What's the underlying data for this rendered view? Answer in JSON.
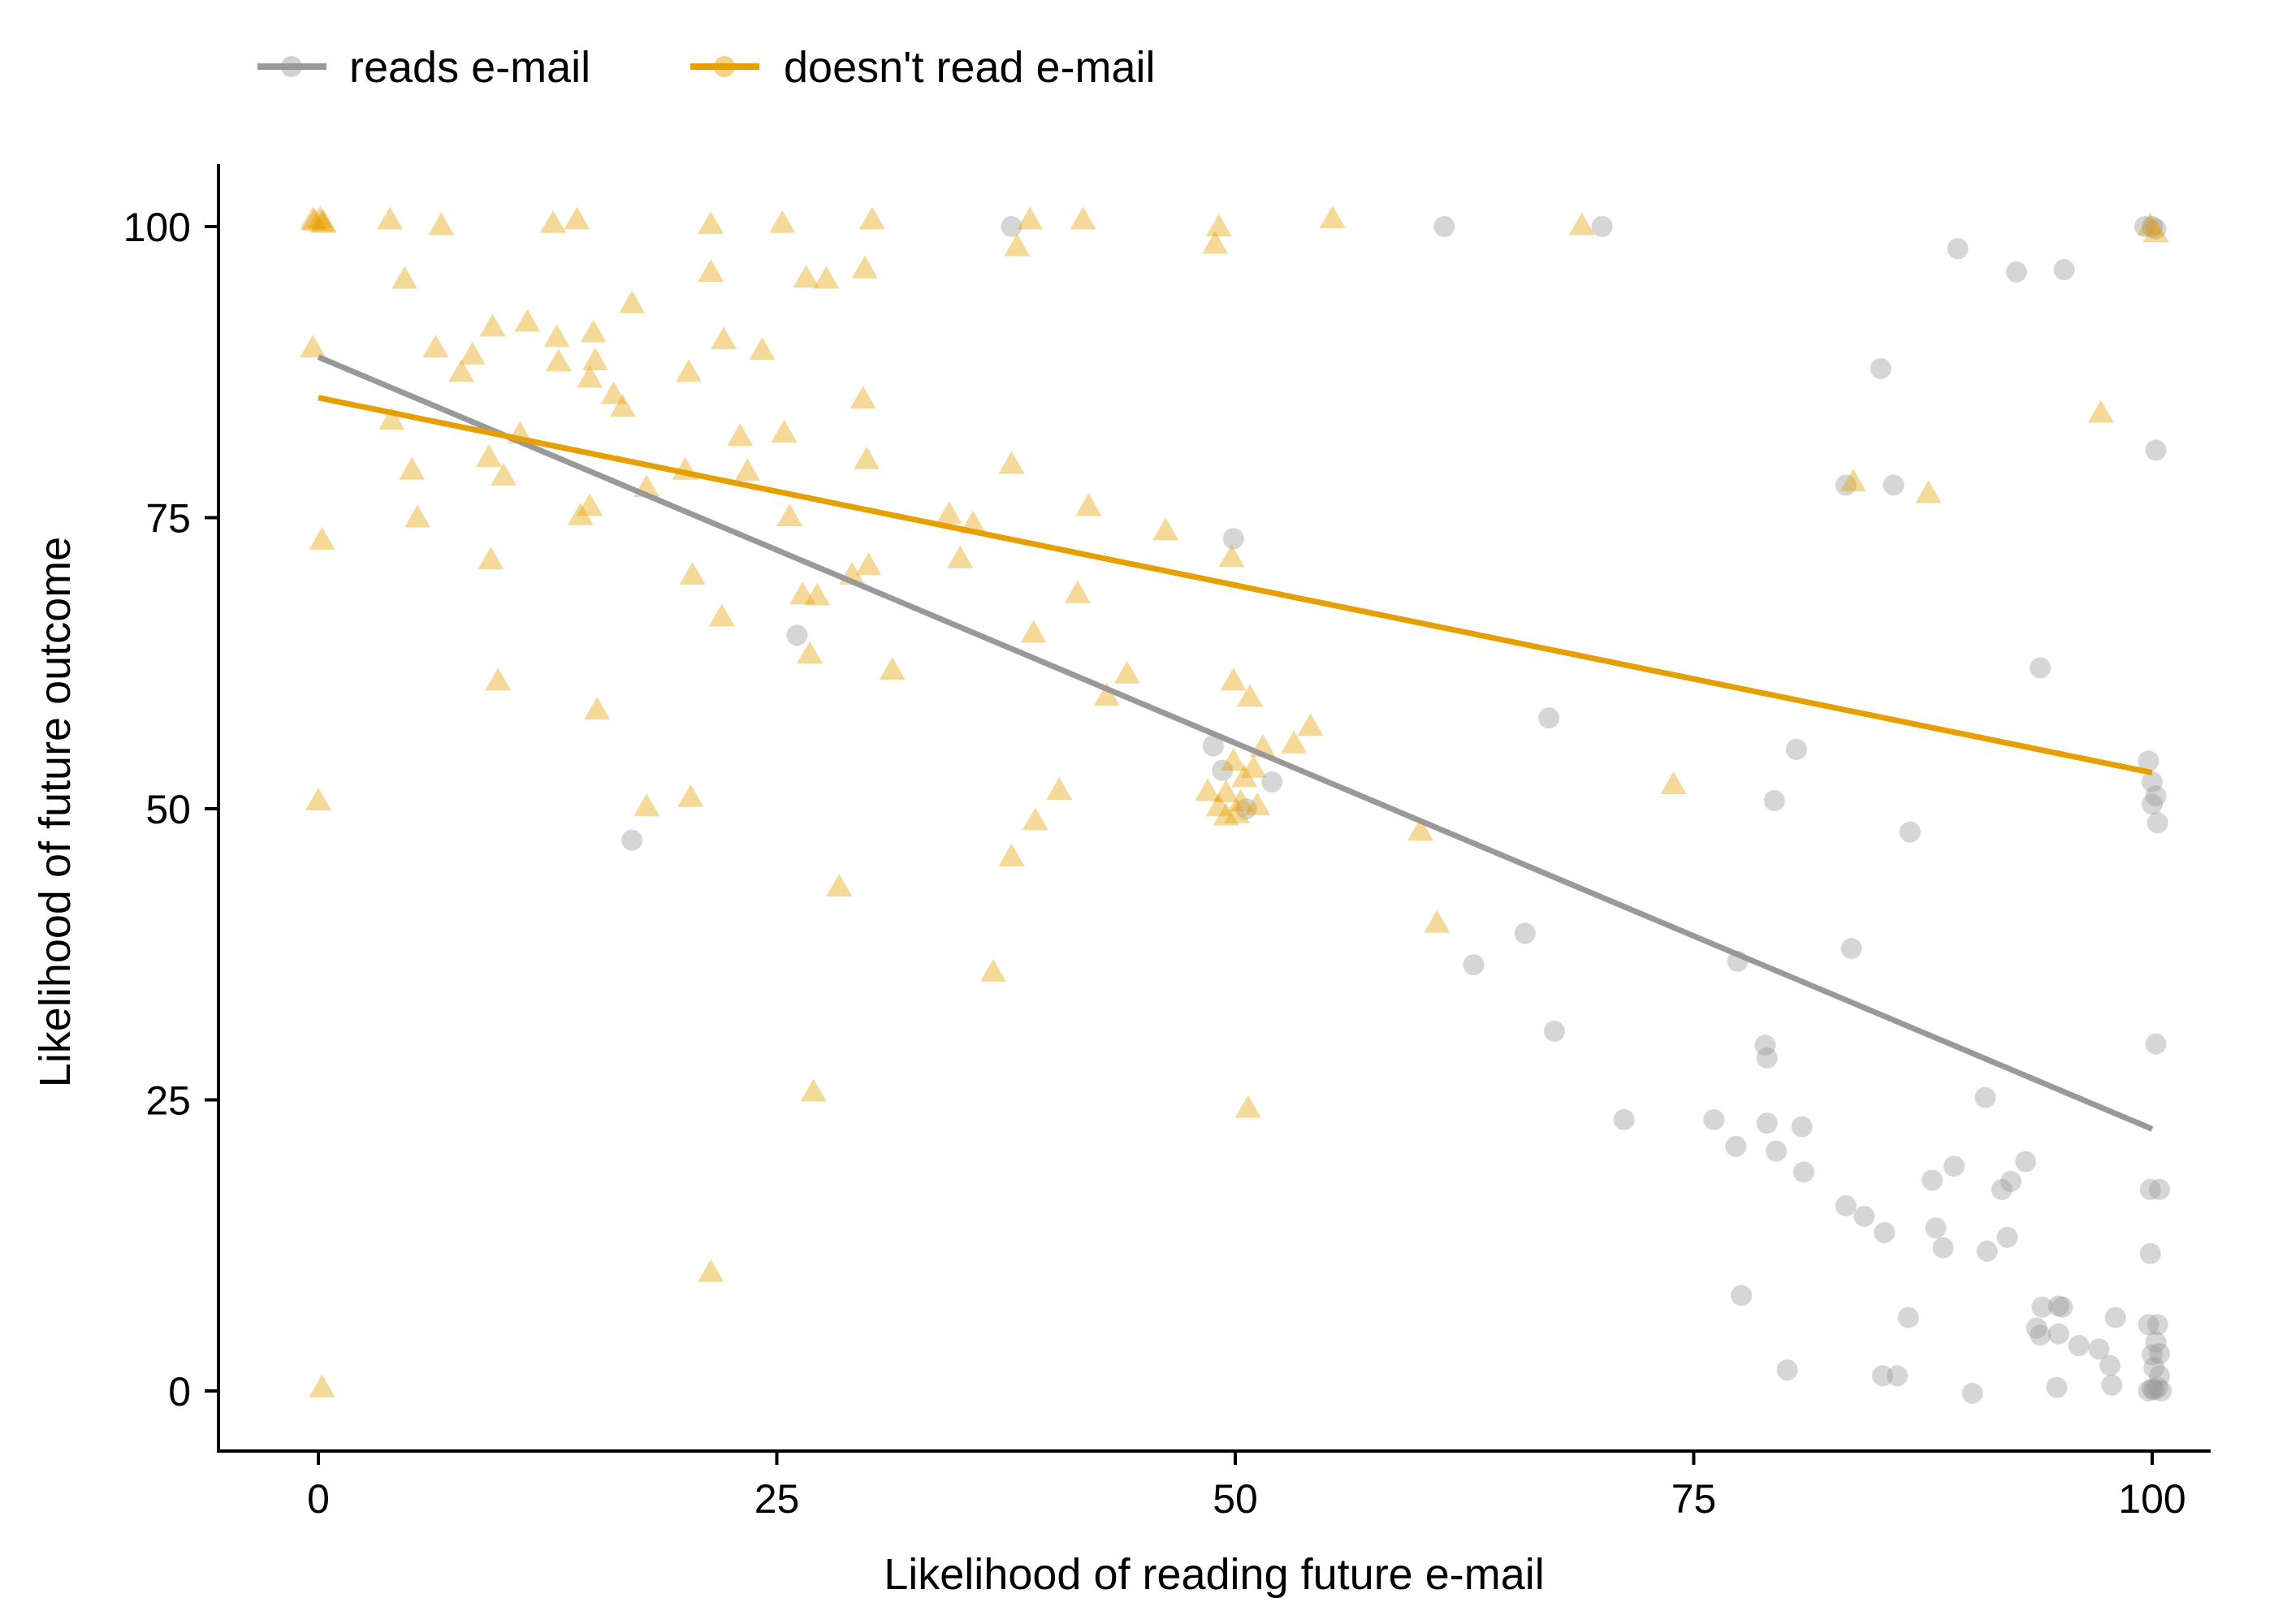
{
  "chart_data": {
    "type": "scatter",
    "xlabel": "Likelihood of reading future e-mail",
    "ylabel": "Likelihood of future outcome",
    "xlim": [
      -2.5,
      105
    ],
    "ylim": [
      -5.5,
      105
    ],
    "x_ticks": [
      0,
      25,
      50,
      75,
      100
    ],
    "y_ticks": [
      0,
      25,
      50,
      75,
      100
    ],
    "x_tick_labels": [
      "0",
      "25",
      "50",
      "75",
      "100"
    ],
    "y_tick_labels": [
      "0",
      "25",
      "50",
      "75",
      "100"
    ],
    "grid": false,
    "legend_position": "top-left",
    "series": [
      {
        "name": "reads e-mail",
        "color": "#999999",
        "marker": "circle",
        "points": [
          [
            37.8,
            100
          ],
          [
            61.4,
            100
          ],
          [
            70.0,
            100
          ],
          [
            89.4,
            98.1
          ],
          [
            92.6,
            96.1
          ],
          [
            95.2,
            96.3
          ],
          [
            99.6,
            100
          ],
          [
            100,
            100
          ],
          [
            100.2,
            99.8
          ],
          [
            85.2,
            87.8
          ],
          [
            100.2,
            80.8
          ],
          [
            83.3,
            77.8
          ],
          [
            85.9,
            77.8
          ],
          [
            49.9,
            73.2
          ],
          [
            26.1,
            64.9
          ],
          [
            93.9,
            62.1
          ],
          [
            67.1,
            57.8
          ],
          [
            80.6,
            55.1
          ],
          [
            48.8,
            55.4
          ],
          [
            99.8,
            54.1
          ],
          [
            52.0,
            52.3
          ],
          [
            49.3,
            53.3
          ],
          [
            100,
            52.3
          ],
          [
            79.4,
            50.7
          ],
          [
            100,
            50.4
          ],
          [
            100.2,
            51.1
          ],
          [
            100.3,
            48.8
          ],
          [
            86.8,
            48.0
          ],
          [
            17.1,
            47.3
          ],
          [
            50.6,
            50.0
          ],
          [
            65.8,
            39.3
          ],
          [
            63.0,
            36.6
          ],
          [
            83.6,
            38.0
          ],
          [
            77.4,
            36.9
          ],
          [
            67.4,
            30.9
          ],
          [
            100.2,
            29.8
          ],
          [
            78.9,
            29.7
          ],
          [
            79.0,
            28.6
          ],
          [
            90.9,
            25.2
          ],
          [
            71.2,
            23.3
          ],
          [
            76.1,
            23.3
          ],
          [
            79.0,
            23.0
          ],
          [
            80.9,
            22.7
          ],
          [
            77.3,
            21.0
          ],
          [
            79.5,
            20.6
          ],
          [
            93.1,
            19.7
          ],
          [
            88.0,
            18.1
          ],
          [
            81.0,
            18.8
          ],
          [
            89.2,
            19.3
          ],
          [
            91.8,
            17.3
          ],
          [
            92.3,
            18.0
          ],
          [
            99.9,
            17.3
          ],
          [
            100.4,
            17.3
          ],
          [
            83.3,
            15.9
          ],
          [
            84.3,
            15.0
          ],
          [
            88.2,
            14.0
          ],
          [
            85.4,
            13.6
          ],
          [
            92.1,
            13.2
          ],
          [
            88.6,
            12.3
          ],
          [
            91.0,
            12.0
          ],
          [
            99.9,
            11.8
          ],
          [
            77.6,
            8.2
          ],
          [
            94.0,
            7.2
          ],
          [
            94.9,
            7.3
          ],
          [
            95.1,
            7.2
          ],
          [
            86.7,
            6.3
          ],
          [
            98.0,
            6.3
          ],
          [
            93.7,
            5.4
          ],
          [
            94.9,
            4.9
          ],
          [
            93.9,
            4.8
          ],
          [
            96.0,
            3.9
          ],
          [
            97.1,
            3.6
          ],
          [
            99.8,
            5.7
          ],
          [
            100.3,
            5.7
          ],
          [
            100.2,
            4.2
          ],
          [
            100.0,
            3.1
          ],
          [
            100.4,
            3.2
          ],
          [
            97.7,
            2.2
          ],
          [
            100.1,
            2.0
          ],
          [
            100.4,
            1.3
          ],
          [
            80.1,
            1.8
          ],
          [
            85.3,
            1.3
          ],
          [
            86.1,
            1.3
          ],
          [
            94.8,
            0.3
          ],
          [
            97.8,
            0.5
          ],
          [
            90.2,
            -0.2
          ],
          [
            99.8,
            0
          ],
          [
            100.1,
            0.1
          ],
          [
            100.3,
            0.3
          ],
          [
            100.5,
            0
          ],
          [
            100,
            0.2
          ]
        ],
        "fit": {
          "x": [
            0,
            100
          ],
          "y": [
            88.8,
            22.5
          ]
        }
      },
      {
        "name": "doesn't read e-mail",
        "color": "#E69F00",
        "marker": "triangle",
        "points": [
          [
            -0.2,
            100.4
          ],
          [
            0.1,
            100.6
          ],
          [
            0.3,
            100.2
          ],
          [
            -0.3,
            100.5
          ],
          [
            0.2,
            100.3
          ],
          [
            3.9,
            100.5
          ],
          [
            6.7,
            100
          ],
          [
            12.8,
            100.2
          ],
          [
            14.1,
            100.5
          ],
          [
            21.4,
            100.1
          ],
          [
            25.3,
            100.2
          ],
          [
            30.2,
            100.5
          ],
          [
            38.8,
            100.5
          ],
          [
            41.7,
            100.5
          ],
          [
            55.3,
            100.6
          ],
          [
            49.1,
            99.9
          ],
          [
            68.9,
            100
          ],
          [
            99.9,
            100
          ],
          [
            100.2,
            99.4
          ],
          [
            38.1,
            98.2
          ],
          [
            48.9,
            98.4
          ],
          [
            21.4,
            96.0
          ],
          [
            29.8,
            96.3
          ],
          [
            26.6,
            95.5
          ],
          [
            27.7,
            95.4
          ],
          [
            4.7,
            95.4
          ],
          [
            17.1,
            93.3
          ],
          [
            9.5,
            91.3
          ],
          [
            11.4,
            91.7
          ],
          [
            13.0,
            90.4
          ],
          [
            15.0,
            90.8
          ],
          [
            22.1,
            90.2
          ],
          [
            24.2,
            89.3
          ],
          [
            -0.3,
            89.5
          ],
          [
            6.4,
            89.5
          ],
          [
            8.4,
            88.9
          ],
          [
            13.1,
            88.3
          ],
          [
            15.1,
            88.4
          ],
          [
            7.8,
            87.4
          ],
          [
            14.8,
            86.9
          ],
          [
            20.2,
            87.4
          ],
          [
            16.1,
            85.5
          ],
          [
            16.6,
            84.4
          ],
          [
            29.7,
            85.1
          ],
          [
            97.2,
            83.9
          ],
          [
            4.0,
            83.3
          ],
          [
            23.0,
            81.9
          ],
          [
            25.4,
            82.2
          ],
          [
            11.0,
            82.1
          ],
          [
            9.3,
            80.1
          ],
          [
            29.9,
            79.9
          ],
          [
            37.8,
            79.5
          ],
          [
            5.1,
            79.0
          ],
          [
            20.0,
            79.0
          ],
          [
            10.1,
            78.5
          ],
          [
            23.4,
            78.9
          ],
          [
            17.9,
            77.5
          ],
          [
            83.7,
            78.0
          ],
          [
            87.8,
            77.0
          ],
          [
            42.0,
            75.9
          ],
          [
            14.8,
            75.9
          ],
          [
            14.3,
            75.1
          ],
          [
            5.4,
            74.9
          ],
          [
            25.7,
            75.0
          ],
          [
            34.4,
            75.2
          ],
          [
            35.7,
            74.4
          ],
          [
            46.2,
            73.8
          ],
          [
            0.2,
            73.0
          ],
          [
            9.4,
            71.3
          ],
          [
            30.0,
            70.8
          ],
          [
            35.0,
            71.4
          ],
          [
            49.8,
            71.5
          ],
          [
            20.4,
            70.0
          ],
          [
            29.1,
            70.0
          ],
          [
            41.4,
            68.4
          ],
          [
            26.4,
            68.3
          ],
          [
            27.2,
            68.2
          ],
          [
            22.0,
            66.4
          ],
          [
            39.0,
            65.0
          ],
          [
            26.8,
            63.2
          ],
          [
            31.3,
            61.8
          ],
          [
            44.1,
            61.5
          ],
          [
            9.8,
            60.9
          ],
          [
            49.9,
            60.9
          ],
          [
            43.0,
            59.6
          ],
          [
            50.8,
            59.5
          ],
          [
            15.2,
            58.4
          ],
          [
            54.1,
            57.0
          ],
          [
            51.5,
            55.2
          ],
          [
            53.2,
            55.5
          ],
          [
            73.9,
            52.0
          ],
          [
            49.9,
            54.0
          ],
          [
            51.0,
            53.4
          ],
          [
            50.5,
            52.6
          ],
          [
            40.4,
            51.5
          ],
          [
            48.5,
            51.4
          ],
          [
            49.5,
            51.3
          ],
          [
            50.3,
            50.5
          ],
          [
            51.2,
            50.2
          ],
          [
            49.1,
            50.1
          ],
          [
            50.1,
            49.5
          ],
          [
            49.5,
            49.3
          ],
          [
            0.0,
            50.6
          ],
          [
            17.9,
            50.1
          ],
          [
            20.3,
            50.9
          ],
          [
            39.1,
            48.9
          ],
          [
            60.1,
            48.0
          ],
          [
            37.8,
            45.8
          ],
          [
            28.4,
            43.2
          ],
          [
            61.0,
            40.1
          ],
          [
            36.8,
            35.9
          ],
          [
            27.0,
            25.6
          ],
          [
            50.7,
            24.2
          ],
          [
            21.4,
            10.1
          ],
          [
            0.2,
            0.2
          ]
        ],
        "fit": {
          "x": [
            0,
            100
          ],
          "y": [
            85.3,
            53.1
          ]
        }
      }
    ]
  }
}
